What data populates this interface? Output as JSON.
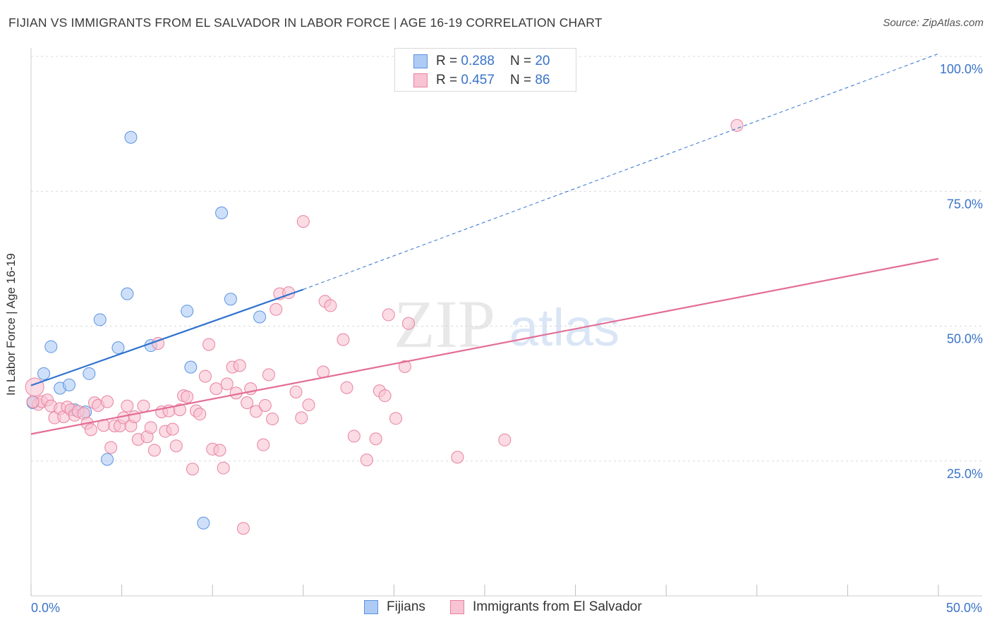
{
  "header": {
    "title": "FIJIAN VS IMMIGRANTS FROM EL SALVADOR IN LABOR FORCE | AGE 16-19 CORRELATION CHART",
    "source": "Source: ZipAtlas.com"
  },
  "watermark": {
    "part1": "ZIP",
    "part2": "atlas"
  },
  "legend": {
    "fijians": {
      "r_label": "R =",
      "r_value": "0.288",
      "n_label": "N =",
      "n_value": "20"
    },
    "salvador": {
      "r_label": "R =",
      "r_value": "0.457",
      "n_label": "N =",
      "n_value": "86"
    }
  },
  "bottom_legend": {
    "fijians": "Fijians",
    "salvador": "Immigrants from El Salvador"
  },
  "x_labels": {
    "left": "0.0%",
    "right": "50.0%"
  },
  "colors": {
    "fijian_fill": "#aecbf5",
    "fijian_stroke": "#5b93e0",
    "fijian_line": "#2f72cf",
    "salvador_fill": "#f8c3d2",
    "salvador_stroke": "#e8829f",
    "salvador_line": "#e36d96",
    "grid": "#d9d9d9",
    "tick_label": "#3a73c8"
  },
  "chart_data": {
    "type": "scatter",
    "title": "FIJIAN VS IMMIGRANTS FROM EL SALVADOR IN LABOR FORCE | AGE 16-19 CORRELATION CHART",
    "xlabel": "",
    "ylabel": "In Labor Force | Age 16-19",
    "xlim": [
      0,
      50
    ],
    "ylim": [
      0,
      100
    ],
    "y_ticks": [
      {
        "value": 25,
        "label": "25.0%"
      },
      {
        "value": 50,
        "label": "50.0%"
      },
      {
        "value": 75,
        "label": "75.0%"
      },
      {
        "value": 100,
        "label": "100.0%"
      }
    ],
    "series": [
      {
        "name": "Fijians",
        "points": [
          [
            0.1,
            35.8
          ],
          [
            0.7,
            41.2
          ],
          [
            1.1,
            46.2
          ],
          [
            1.6,
            38.5
          ],
          [
            2.1,
            39.1
          ],
          [
            2.4,
            34.5
          ],
          [
            3.0,
            34.1
          ],
          [
            3.2,
            41.2
          ],
          [
            3.8,
            51.2
          ],
          [
            4.2,
            25.3
          ],
          [
            4.8,
            46.0
          ],
          [
            5.3,
            56.0
          ],
          [
            5.5,
            85.0
          ],
          [
            6.6,
            46.4
          ],
          [
            8.6,
            52.8
          ],
          [
            8.8,
            42.4
          ],
          [
            9.5,
            13.5
          ],
          [
            10.5,
            71.0
          ],
          [
            11.0,
            55.0
          ],
          [
            12.6,
            51.7
          ]
        ],
        "trend": {
          "x0": 0,
          "y0": 39.0,
          "x1": 15,
          "y1": 56.8,
          "dash_to_x": 50,
          "dash_to_y": 100.5
        }
      },
      {
        "name": "Immigrants from El Salvador",
        "points": [
          [
            0.2,
            38.7
          ],
          [
            0.4,
            35.5
          ],
          [
            0.6,
            36.0
          ],
          [
            0.9,
            36.3
          ],
          [
            1.1,
            35.2
          ],
          [
            1.3,
            33.0
          ],
          [
            1.6,
            34.7
          ],
          [
            1.8,
            33.2
          ],
          [
            2.0,
            35.0
          ],
          [
            2.2,
            34.5
          ],
          [
            2.4,
            33.5
          ],
          [
            2.6,
            34.2
          ],
          [
            2.9,
            33.8
          ],
          [
            3.1,
            32.0
          ],
          [
            3.3,
            30.8
          ],
          [
            3.5,
            35.8
          ],
          [
            3.7,
            35.3
          ],
          [
            4.0,
            31.6
          ],
          [
            4.2,
            36.0
          ],
          [
            4.4,
            27.5
          ],
          [
            4.6,
            31.5
          ],
          [
            4.9,
            31.5
          ],
          [
            5.1,
            33.0
          ],
          [
            5.3,
            35.2
          ],
          [
            5.5,
            31.5
          ],
          [
            5.7,
            33.2
          ],
          [
            5.9,
            29.0
          ],
          [
            6.2,
            35.2
          ],
          [
            6.4,
            29.5
          ],
          [
            6.6,
            31.2
          ],
          [
            6.8,
            27.0
          ],
          [
            7.0,
            46.8
          ],
          [
            7.2,
            34.1
          ],
          [
            7.4,
            30.5
          ],
          [
            7.6,
            34.3
          ],
          [
            7.8,
            30.9
          ],
          [
            8.0,
            27.8
          ],
          [
            8.2,
            34.5
          ],
          [
            8.4,
            37.1
          ],
          [
            8.6,
            36.9
          ],
          [
            8.9,
            23.5
          ],
          [
            9.1,
            34.3
          ],
          [
            9.3,
            33.7
          ],
          [
            9.6,
            40.7
          ],
          [
            9.8,
            46.6
          ],
          [
            10.0,
            27.2
          ],
          [
            10.2,
            38.4
          ],
          [
            10.4,
            27.0
          ],
          [
            10.6,
            23.7
          ],
          [
            10.8,
            39.3
          ],
          [
            11.1,
            42.4
          ],
          [
            11.3,
            37.6
          ],
          [
            11.5,
            42.7
          ],
          [
            11.7,
            12.5
          ],
          [
            11.9,
            35.8
          ],
          [
            12.1,
            38.4
          ],
          [
            12.4,
            34.2
          ],
          [
            12.8,
            28.0
          ],
          [
            12.9,
            35.3
          ],
          [
            13.1,
            41.0
          ],
          [
            13.3,
            32.8
          ],
          [
            13.5,
            53.1
          ],
          [
            13.7,
            56.0
          ],
          [
            14.2,
            56.2
          ],
          [
            14.6,
            37.8
          ],
          [
            14.9,
            33.0
          ],
          [
            15.0,
            69.4
          ],
          [
            15.3,
            35.4
          ],
          [
            16.1,
            41.5
          ],
          [
            16.2,
            54.6
          ],
          [
            16.5,
            53.8
          ],
          [
            17.2,
            47.5
          ],
          [
            17.4,
            38.6
          ],
          [
            17.8,
            29.6
          ],
          [
            18.5,
            25.2
          ],
          [
            19.0,
            29.1
          ],
          [
            19.2,
            38.0
          ],
          [
            19.5,
            37.1
          ],
          [
            19.7,
            52.1
          ],
          [
            20.1,
            32.9
          ],
          [
            20.6,
            42.5
          ],
          [
            20.8,
            50.5
          ],
          [
            23.5,
            25.7
          ],
          [
            26.1,
            28.9
          ],
          [
            38.9,
            87.2
          ],
          [
            0.1,
            36.0
          ]
        ],
        "trend": {
          "x0": 0,
          "y0": 30.0,
          "x1": 50,
          "y1": 62.5
        }
      }
    ]
  }
}
